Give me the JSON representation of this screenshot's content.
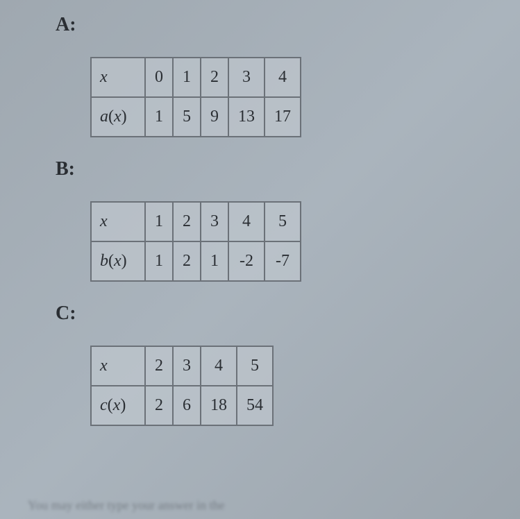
{
  "sections": [
    {
      "label": "A:",
      "var_label": "x",
      "fn_label": "a(x)",
      "x": [
        "0",
        "1",
        "2",
        "3",
        "4"
      ],
      "fx": [
        "1",
        "5",
        "9",
        "13",
        "17"
      ],
      "wide_cols": [
        3,
        4
      ]
    },
    {
      "label": "B:",
      "var_label": "x",
      "fn_label": "b(x)",
      "x": [
        "1",
        "2",
        "3",
        "4",
        "5"
      ],
      "fx": [
        "1",
        "2",
        "1",
        "-2",
        "-7"
      ],
      "wide_cols": [
        3,
        4
      ]
    },
    {
      "label": "C:",
      "var_label": "x",
      "fn_label": "c(x)",
      "x": [
        "2",
        "3",
        "4",
        "5"
      ],
      "fx": [
        "2",
        "6",
        "18",
        "54"
      ],
      "wide_cols": [
        2,
        3
      ]
    }
  ],
  "bottom_text": "You may either type your answer in the",
  "colors": {
    "background": "#9fa8b0",
    "border": "#6b7178",
    "text": "#2a2e33",
    "cell_bg": "rgba(195,202,208,0.6)"
  }
}
